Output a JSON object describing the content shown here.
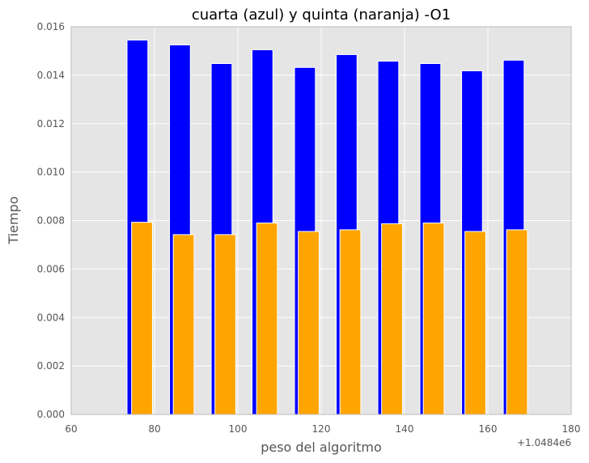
{
  "chart_data": {
    "type": "bar",
    "title": "cuarta (azul) y quinta (naranja) -O1",
    "xlabel": "peso del algoritmo",
    "ylabel": "Tiempo",
    "x_offset_label": "+1.0484e6",
    "xlim": [
      60,
      180
    ],
    "ylim": [
      0,
      0.016
    ],
    "xticks": [
      "60",
      "80",
      "100",
      "120",
      "140",
      "160",
      "180"
    ],
    "yticks": [
      "0.000",
      "0.002",
      "0.004",
      "0.006",
      "0.008",
      "0.010",
      "0.012",
      "0.014",
      "0.016"
    ],
    "grid": true,
    "background": "#e5e5e5",
    "series": [
      {
        "color": "#0000ff",
        "x": [
          73.4,
          83.6,
          93.6,
          103.4,
          113.6,
          123.6,
          133.6,
          143.7,
          153.7,
          163.7
        ],
        "width": 5,
        "values": [
          0.01545,
          0.01525,
          0.01448,
          0.01505,
          0.01432,
          0.01485,
          0.01458,
          0.01448,
          0.01418,
          0.01462
        ]
      },
      {
        "color": "#ffa500",
        "x": [
          74.5,
          84.5,
          94.5,
          104.5,
          114.5,
          124.5,
          134.5,
          144.5,
          154.5,
          164.5
        ],
        "width": 5,
        "values": [
          0.00793,
          0.00742,
          0.00742,
          0.0079,
          0.00755,
          0.00762,
          0.00787,
          0.0079,
          0.00755,
          0.00762
        ]
      }
    ]
  }
}
